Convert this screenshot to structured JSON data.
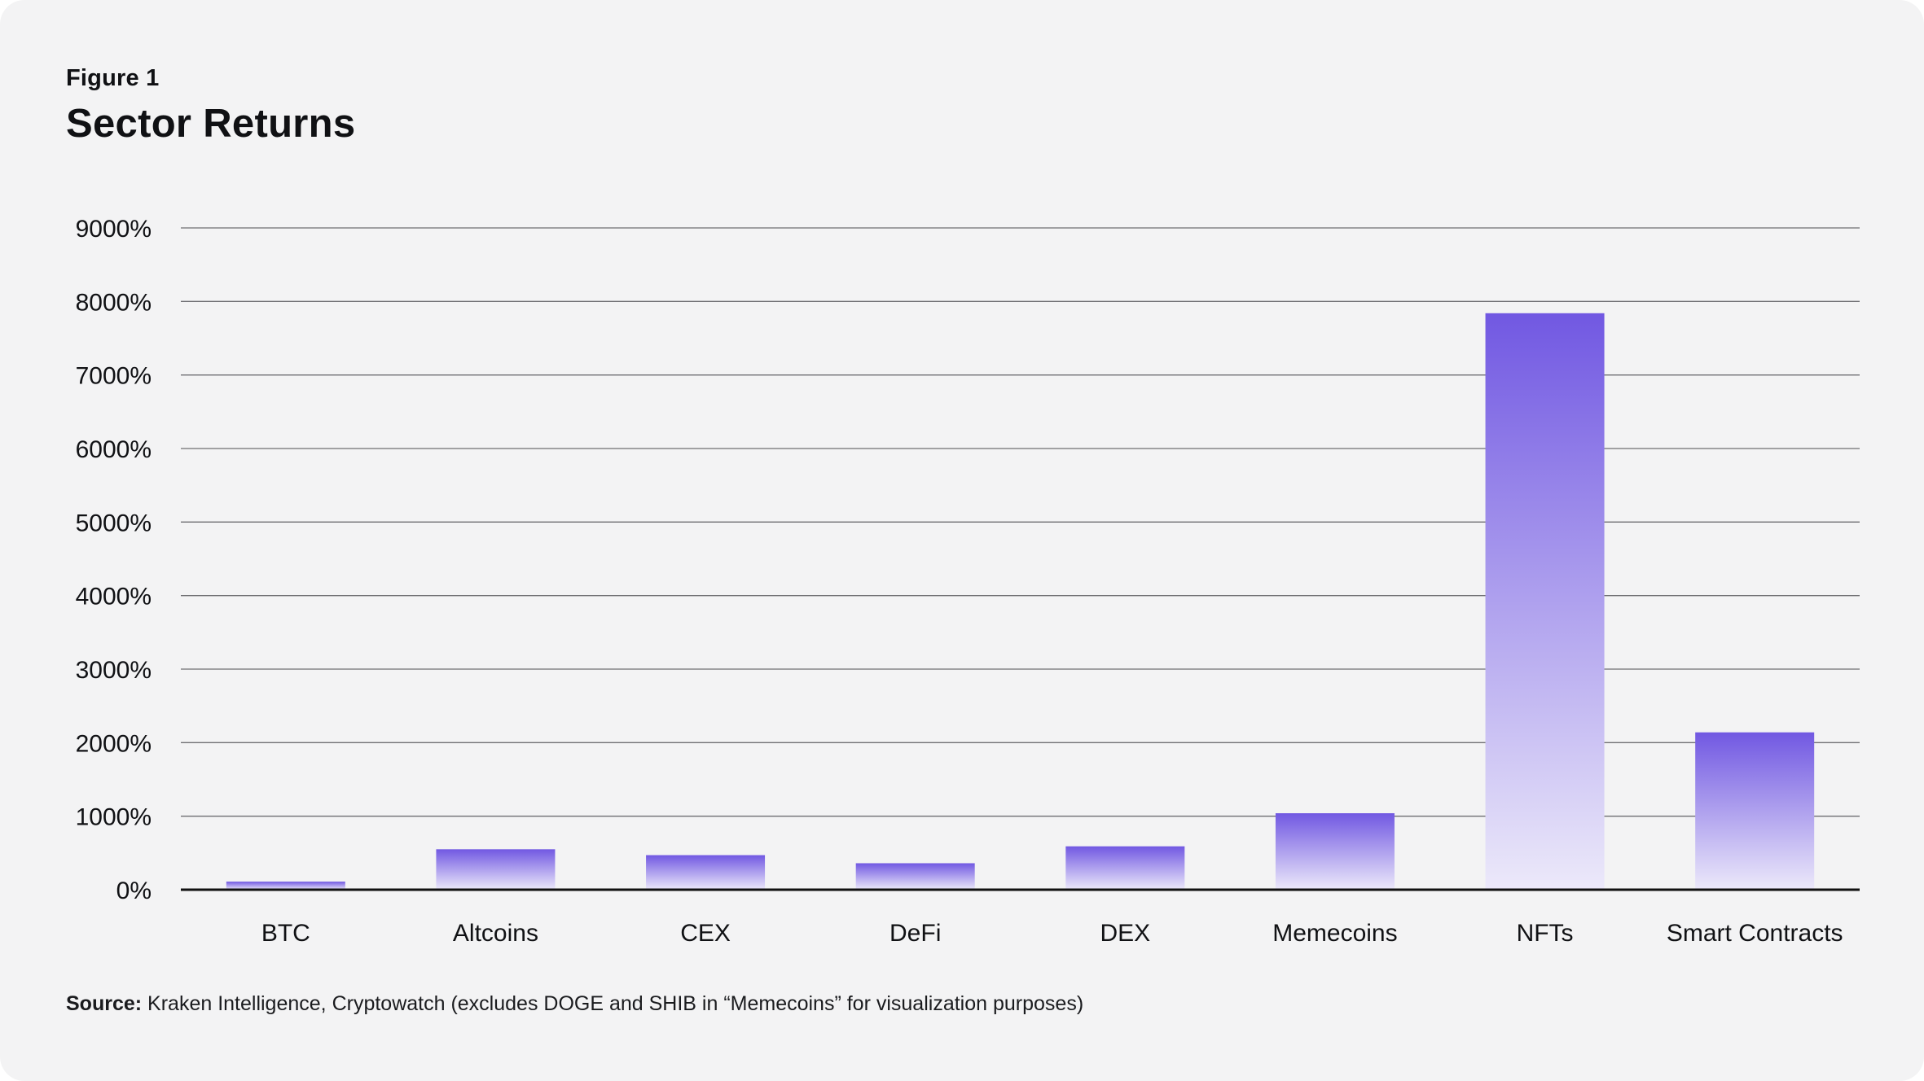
{
  "figure_label": "Figure 1",
  "title": "Sector Returns",
  "source_label": "Source:",
  "source_text": " Kraken Intelligence, Cryptowatch (excludes DOGE and SHIB in “Memecoins” for visualization purposes)",
  "colors": {
    "background": "#f3f3f4",
    "bar_top": "#7158e2",
    "bar_bottom": "#ece9fa",
    "gridline": "#6e6e72",
    "axis": "#111111"
  },
  "chart_data": {
    "type": "bar",
    "title": "Sector Returns",
    "xlabel": "",
    "ylabel": "",
    "ylim": [
      0,
      9000
    ],
    "y_ticks": [
      0,
      1000,
      2000,
      3000,
      4000,
      5000,
      6000,
      7000,
      8000,
      9000
    ],
    "y_tick_labels": [
      "0%",
      "1000%",
      "2000%",
      "3000%",
      "4000%",
      "5000%",
      "6000%",
      "7000%",
      "8000%",
      "9000%"
    ],
    "categories": [
      "BTC",
      "Altcoins",
      "CEX",
      "DeFi",
      "DEX",
      "Memecoins",
      "NFTs",
      "Smart Contracts"
    ],
    "values": [
      110,
      550,
      470,
      360,
      590,
      1040,
      7840,
      2140
    ],
    "grid": true,
    "legend": "none"
  }
}
